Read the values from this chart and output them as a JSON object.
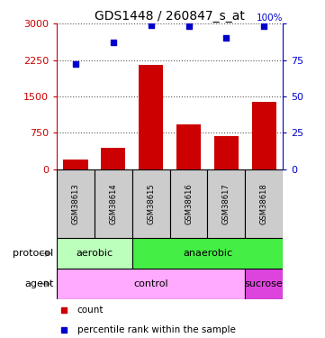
{
  "title": "GDS1448 / 260847_s_at",
  "samples": [
    "GSM38613",
    "GSM38614",
    "GSM38615",
    "GSM38616",
    "GSM38617",
    "GSM38618"
  ],
  "counts": [
    200,
    430,
    2150,
    930,
    680,
    1380
  ],
  "percentile_ranks": [
    72,
    87,
    99,
    98,
    90,
    98
  ],
  "ylim_left": [
    0,
    3000
  ],
  "ylim_right": [
    0,
    100
  ],
  "yticks_left": [
    0,
    750,
    1500,
    2250,
    3000
  ],
  "yticks_right": [
    0,
    25,
    50,
    75,
    100
  ],
  "bar_color": "#cc0000",
  "dot_color": "#0000cc",
  "protocol": [
    {
      "label": "aerobic",
      "start": 0,
      "end": 2,
      "color": "#bbffbb"
    },
    {
      "label": "anaerobic",
      "start": 2,
      "end": 6,
      "color": "#44ee44"
    }
  ],
  "agent": [
    {
      "label": "control",
      "start": 0,
      "end": 5,
      "color": "#ffaaff"
    },
    {
      "label": "sucrose",
      "start": 5,
      "end": 6,
      "color": "#dd44dd"
    }
  ],
  "protocol_label": "protocol",
  "agent_label": "agent",
  "legend_count": "count",
  "legend_pct": "percentile rank within the sample",
  "tick_color_left": "#cc0000",
  "tick_color_right": "#0000cc",
  "dotted_line_color": "#555555",
  "sample_box_color": "#cccccc",
  "n_samples": 6
}
